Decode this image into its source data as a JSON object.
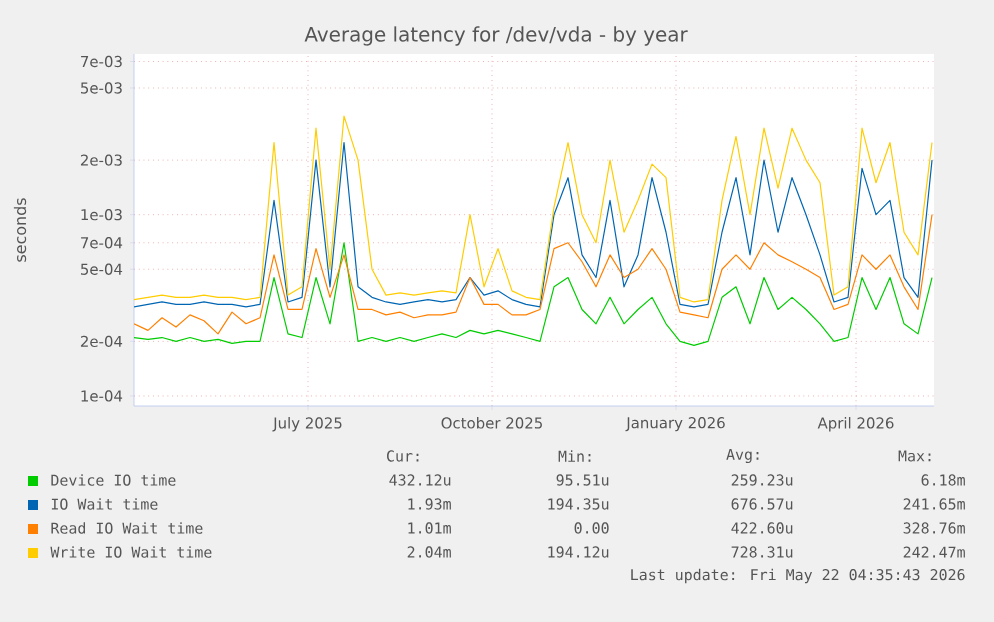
{
  "chart_data": {
    "type": "line",
    "title": "Average latency for /dev/vda - by year",
    "ylabel": "seconds",
    "log": true,
    "grid": true,
    "legend": "bottom",
    "marker": "none",
    "xlim": [
      "2025-04-05",
      "2026-05-10"
    ],
    "ylim": [
      8.8e-05,
      0.0077
    ],
    "xticks": [
      {
        "value": "2025-07-01",
        "label": "July 2025"
      },
      {
        "value": "2025-10-01",
        "label": "October 2025"
      },
      {
        "value": "2026-01-01",
        "label": "January 2026"
      },
      {
        "value": "2026-04-01",
        "label": "April 2026"
      }
    ],
    "yticks": [
      {
        "value": 0.0001,
        "label": "1e-04"
      },
      {
        "value": 0.0002,
        "label": "2e-04"
      },
      {
        "value": 0.0005,
        "label": "5e-04"
      },
      {
        "value": 0.0007,
        "label": "7e-04"
      },
      {
        "value": 0.001,
        "label": "1e-03"
      },
      {
        "value": 0.002,
        "label": "2e-03"
      },
      {
        "value": 0.005,
        "label": "5e-03"
      },
      {
        "value": 0.007,
        "label": "7e-03"
      }
    ],
    "x": [
      "2025-04-05",
      "2025-04-12",
      "2025-04-19",
      "2025-04-26",
      "2025-05-03",
      "2025-05-10",
      "2025-05-17",
      "2025-05-24",
      "2025-05-31",
      "2025-06-07",
      "2025-06-14",
      "2025-06-21",
      "2025-06-28",
      "2025-07-05",
      "2025-07-12",
      "2025-07-19",
      "2025-07-26",
      "2025-08-02",
      "2025-08-09",
      "2025-08-16",
      "2025-08-23",
      "2025-08-30",
      "2025-09-06",
      "2025-09-13",
      "2025-09-20",
      "2025-09-27",
      "2025-10-04",
      "2025-10-11",
      "2025-10-18",
      "2025-10-25",
      "2025-11-01",
      "2025-11-08",
      "2025-11-15",
      "2025-11-22",
      "2025-11-29",
      "2025-12-06",
      "2025-12-13",
      "2025-12-20",
      "2025-12-27",
      "2026-01-03",
      "2026-01-10",
      "2026-01-17",
      "2026-01-24",
      "2026-01-31",
      "2026-02-07",
      "2026-02-14",
      "2026-02-21",
      "2026-02-28",
      "2026-03-07",
      "2026-03-14",
      "2026-03-21",
      "2026-03-28",
      "2026-04-04",
      "2026-04-11",
      "2026-04-18",
      "2026-04-25",
      "2026-05-02",
      "2026-05-09"
    ],
    "series": [
      {
        "name": "Device IO time",
        "color": "#00cc00",
        "values": [
          0.00021,
          0.000205,
          0.00021,
          0.0002,
          0.00021,
          0.0002,
          0.000205,
          0.000195,
          0.0002,
          0.0002,
          0.00045,
          0.00022,
          0.00021,
          0.00045,
          0.00025,
          0.0007,
          0.0002,
          0.00021,
          0.0002,
          0.00021,
          0.0002,
          0.00021,
          0.00022,
          0.00021,
          0.00023,
          0.00022,
          0.00023,
          0.00022,
          0.00021,
          0.0002,
          0.0004,
          0.00045,
          0.0003,
          0.00025,
          0.00035,
          0.00025,
          0.0003,
          0.00035,
          0.00025,
          0.0002,
          0.00019,
          0.0002,
          0.00035,
          0.0004,
          0.00025,
          0.00045,
          0.0003,
          0.00035,
          0.0003,
          0.00025,
          0.0002,
          0.00021,
          0.00045,
          0.0003,
          0.00045,
          0.00025,
          0.00022,
          0.00045
        ]
      },
      {
        "name": "IO Wait time",
        "color": "#0066b3",
        "values": [
          0.00031,
          0.00032,
          0.00033,
          0.00032,
          0.00032,
          0.00033,
          0.00032,
          0.00032,
          0.00031,
          0.00032,
          0.0012,
          0.00033,
          0.00035,
          0.002,
          0.0004,
          0.0025,
          0.0004,
          0.00035,
          0.00033,
          0.00032,
          0.00033,
          0.00034,
          0.00033,
          0.00034,
          0.00045,
          0.00036,
          0.00038,
          0.00034,
          0.00032,
          0.00031,
          0.001,
          0.0016,
          0.0006,
          0.00045,
          0.0012,
          0.0004,
          0.0006,
          0.0016,
          0.0008,
          0.00032,
          0.00031,
          0.00032,
          0.0008,
          0.0016,
          0.0006,
          0.002,
          0.0008,
          0.0016,
          0.001,
          0.0006,
          0.00033,
          0.00035,
          0.0018,
          0.001,
          0.0012,
          0.00045,
          0.00035,
          0.002
        ]
      },
      {
        "name": "Read IO Wait time",
        "color": "#ff8000",
        "values": [
          0.00025,
          0.00023,
          0.00027,
          0.00024,
          0.00028,
          0.00026,
          0.00022,
          0.00029,
          0.00025,
          0.00027,
          0.0006,
          0.0003,
          0.0003,
          0.00065,
          0.00035,
          0.0006,
          0.0003,
          0.0003,
          0.00028,
          0.00029,
          0.00027,
          0.00028,
          0.00028,
          0.00029,
          0.00045,
          0.00032,
          0.00032,
          0.00028,
          0.00028,
          0.0003,
          0.00065,
          0.0007,
          0.00055,
          0.0004,
          0.0006,
          0.00045,
          0.0005,
          0.00065,
          0.0005,
          0.00029,
          0.00028,
          0.00027,
          0.0005,
          0.0006,
          0.0005,
          0.0007,
          0.0006,
          0.00055,
          0.0005,
          0.00045,
          0.0003,
          0.00032,
          0.0006,
          0.0005,
          0.0006,
          0.0004,
          0.0003,
          0.001
        ]
      },
      {
        "name": "Write IO Wait time",
        "color": "#ffcc00",
        "values": [
          0.00034,
          0.00035,
          0.00036,
          0.00035,
          0.00035,
          0.00036,
          0.00035,
          0.00035,
          0.00034,
          0.00035,
          0.0025,
          0.00036,
          0.0004,
          0.003,
          0.0005,
          0.0035,
          0.002,
          0.0005,
          0.00036,
          0.00037,
          0.00036,
          0.00037,
          0.00038,
          0.00037,
          0.001,
          0.0004,
          0.00065,
          0.00038,
          0.00035,
          0.00034,
          0.0011,
          0.0025,
          0.001,
          0.0007,
          0.002,
          0.0008,
          0.0012,
          0.0019,
          0.0016,
          0.00035,
          0.00033,
          0.00034,
          0.0012,
          0.0027,
          0.001,
          0.003,
          0.0014,
          0.003,
          0.002,
          0.0015,
          0.00036,
          0.0004,
          0.003,
          0.0015,
          0.0025,
          0.0008,
          0.0006,
          0.0025
        ]
      }
    ],
    "annotations": [
      "Cur:",
      "Min:",
      "Avg:",
      "Max:",
      "432.12u",
      "95.51u",
      "259.23u",
      "6.18m",
      "1.93m",
      "194.35u",
      "676.57u",
      "241.65m",
      "1.01m",
      "0.00",
      "422.60u",
      "328.76m",
      "2.04m",
      "194.12u",
      "728.31u",
      "242.47m",
      "Last update: Fri May 22 04:35:43 2026"
    ]
  }
}
